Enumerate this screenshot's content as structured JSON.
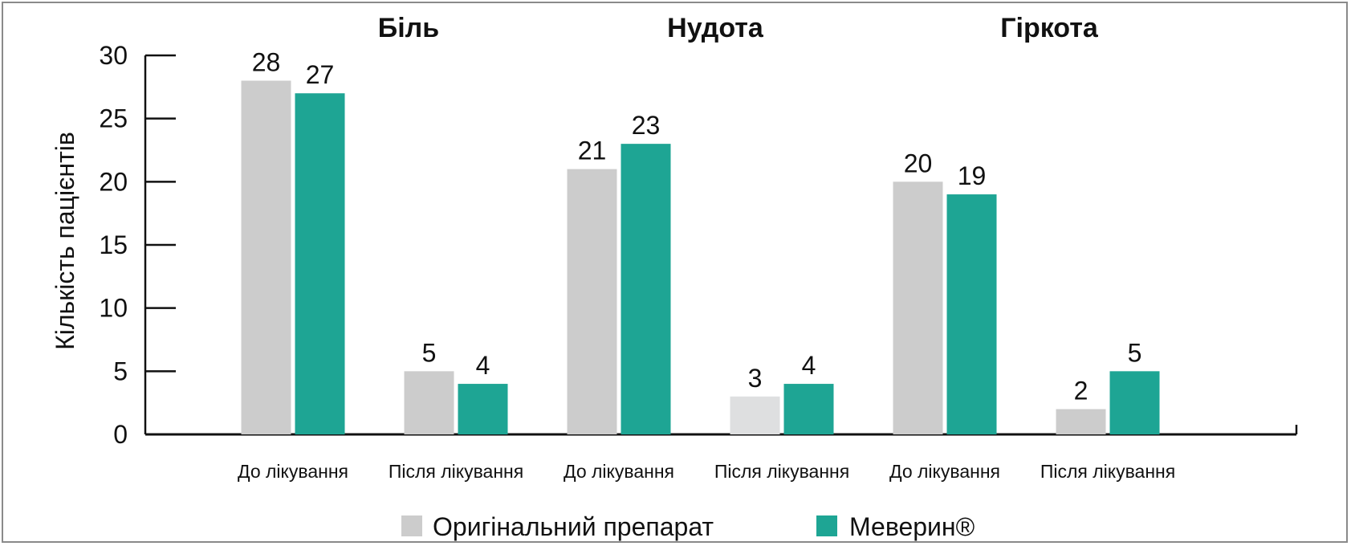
{
  "chart_data": {
    "type": "bar",
    "ylabel": "Кількість пацієнтів",
    "ylim": [
      0,
      30
    ],
    "yticks": [
      "0",
      "5",
      "10",
      "15",
      "20",
      "25",
      "30"
    ],
    "groups": [
      {
        "title": "Біль",
        "categories": [
          "До лікування",
          "Після лікування"
        ]
      },
      {
        "title": "Нудота",
        "categories": [
          "До лікування",
          "Після лікування"
        ]
      },
      {
        "title": "Гіркота",
        "categories": [
          "До лікування",
          "Після лікування"
        ]
      }
    ],
    "categories": [
      "До лікування",
      "Після лікування",
      "До лікування",
      "Після лікування",
      "До лікування",
      "Після лікування"
    ],
    "series": [
      {
        "name": "Оригінальний препарат",
        "color": "#cccccc",
        "values": [
          28,
          5,
          21,
          3,
          20,
          2
        ]
      },
      {
        "name": "Меверин®",
        "color": "#1ea594",
        "values": [
          27,
          4,
          23,
          4,
          19,
          5
        ]
      }
    ],
    "legend_position": "bottom",
    "grid": false
  }
}
